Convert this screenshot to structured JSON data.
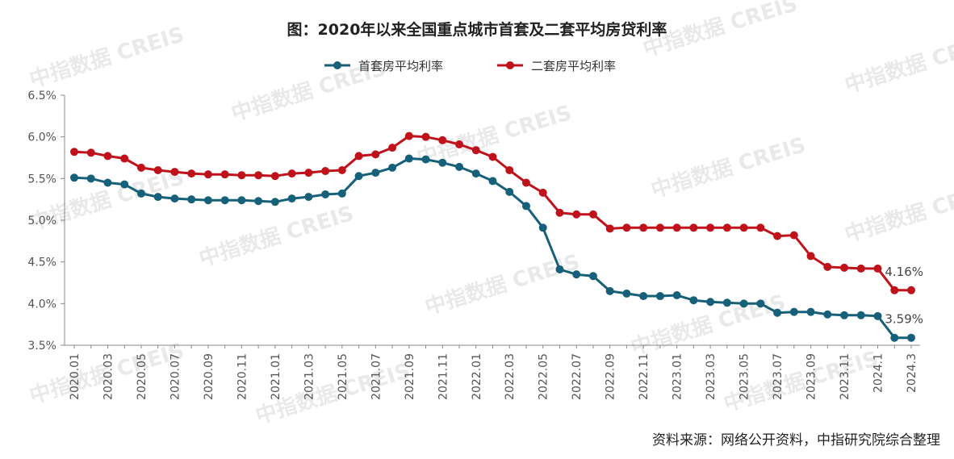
{
  "chart_data": {
    "type": "line",
    "title": "图：2020年以来全国重点城市首套及二套平均房贷利率",
    "source": "资料来源：网络公开资料，中指研究院综合整理",
    "watermark": "中指数据 CREIS",
    "ylim": [
      3.5,
      6.5
    ],
    "yticks": [
      "3.5%",
      "4.0%",
      "4.5%",
      "5.0%",
      "5.5%",
      "6.0%",
      "6.5%"
    ],
    "ytick_values": [
      3.5,
      4.0,
      4.5,
      5.0,
      5.5,
      6.0,
      6.5
    ],
    "x": [
      "2020.01",
      "2020.02",
      "2020.03",
      "2020.04",
      "2020.05",
      "2020.06",
      "2020.07",
      "2020.08",
      "2020.09",
      "2020.10",
      "2020.11",
      "2020.12",
      "2021.01",
      "2021.02",
      "2021.03",
      "2021.04",
      "2021.05",
      "2021.06",
      "2021.07",
      "2021.08",
      "2021.09",
      "2021.10",
      "2021.11",
      "2021.12",
      "2022.01",
      "2022.02",
      "2022.03",
      "2022.04",
      "2022.05",
      "2022.06",
      "2022.07",
      "2022.08",
      "2022.09",
      "2022.10",
      "2022.11",
      "2022.12",
      "2023.01",
      "2023.02",
      "2023.03",
      "2023.04",
      "2023.05",
      "2023.06",
      "2023.07",
      "2023.08",
      "2023.09",
      "2023.10",
      "2023.11",
      "2023.12",
      "2024.1",
      "2024.2",
      "2024.3"
    ],
    "xtick_labels": [
      "2020.01",
      "2020.03",
      "2020.05",
      "2020.07",
      "2020.09",
      "2020.11",
      "2021.01",
      "2021.03",
      "2021.05",
      "2021.07",
      "2021.09",
      "2021.11",
      "2022.01",
      "2022.03",
      "2022.05",
      "2022.07",
      "2022.09",
      "2022.11",
      "2023.01",
      "2023.03",
      "2023.05",
      "2023.07",
      "2023.09",
      "2023.11",
      "2024.1",
      "2024.3"
    ],
    "xtick_indices": [
      0,
      2,
      4,
      6,
      8,
      10,
      12,
      14,
      16,
      18,
      20,
      22,
      24,
      26,
      28,
      30,
      32,
      34,
      36,
      38,
      40,
      42,
      44,
      46,
      48,
      50
    ],
    "series": [
      {
        "name": "首套房平均利率",
        "color": "#17607a",
        "values": [
          5.51,
          5.5,
          5.45,
          5.43,
          5.32,
          5.28,
          5.26,
          5.25,
          5.24,
          5.24,
          5.24,
          5.23,
          5.22,
          5.26,
          5.28,
          5.31,
          5.32,
          5.53,
          5.57,
          5.63,
          5.74,
          5.73,
          5.69,
          5.64,
          5.56,
          5.47,
          5.34,
          5.17,
          4.91,
          4.41,
          4.35,
          4.33,
          4.15,
          4.12,
          4.09,
          4.09,
          4.1,
          4.04,
          4.02,
          4.01,
          4.0,
          4.0,
          3.89,
          3.9,
          3.9,
          3.87,
          3.86,
          3.86,
          3.85,
          3.59,
          3.59
        ],
        "end_label": "3.59%"
      },
      {
        "name": "二套房平均利率",
        "color": "#c0121a",
        "values": [
          5.82,
          5.81,
          5.77,
          5.74,
          5.63,
          5.6,
          5.58,
          5.56,
          5.55,
          5.55,
          5.54,
          5.54,
          5.53,
          5.56,
          5.57,
          5.59,
          5.6,
          5.77,
          5.79,
          5.87,
          6.01,
          6.0,
          5.96,
          5.91,
          5.84,
          5.76,
          5.6,
          5.45,
          5.33,
          5.09,
          5.07,
          5.07,
          4.9,
          4.91,
          4.91,
          4.91,
          4.91,
          4.91,
          4.91,
          4.91,
          4.91,
          4.91,
          4.81,
          4.82,
          4.57,
          4.44,
          4.43,
          4.42,
          4.42,
          4.16,
          4.16
        ],
        "end_label": "4.16%"
      }
    ]
  }
}
